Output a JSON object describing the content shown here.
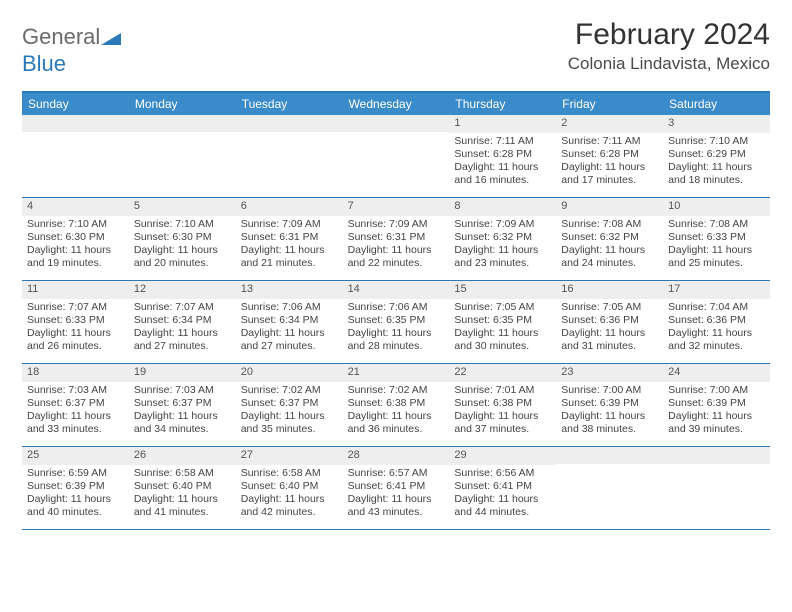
{
  "brand": {
    "part1": "General",
    "part2": "Blue"
  },
  "title": "February 2024",
  "location": "Colonia Lindavista, Mexico",
  "colors": {
    "header_bg": "#3a8bc9",
    "border": "#2a7ab9",
    "daynum_bg": "#eeeeee",
    "text": "#333333"
  },
  "weekdays": [
    "Sunday",
    "Monday",
    "Tuesday",
    "Wednesday",
    "Thursday",
    "Friday",
    "Saturday"
  ],
  "weeks": [
    [
      {
        "n": "",
        "sr": "",
        "ss": "",
        "dl": ""
      },
      {
        "n": "",
        "sr": "",
        "ss": "",
        "dl": ""
      },
      {
        "n": "",
        "sr": "",
        "ss": "",
        "dl": ""
      },
      {
        "n": "",
        "sr": "",
        "ss": "",
        "dl": ""
      },
      {
        "n": "1",
        "sr": "Sunrise: 7:11 AM",
        "ss": "Sunset: 6:28 PM",
        "dl": "Daylight: 11 hours and 16 minutes."
      },
      {
        "n": "2",
        "sr": "Sunrise: 7:11 AM",
        "ss": "Sunset: 6:28 PM",
        "dl": "Daylight: 11 hours and 17 minutes."
      },
      {
        "n": "3",
        "sr": "Sunrise: 7:10 AM",
        "ss": "Sunset: 6:29 PM",
        "dl": "Daylight: 11 hours and 18 minutes."
      }
    ],
    [
      {
        "n": "4",
        "sr": "Sunrise: 7:10 AM",
        "ss": "Sunset: 6:30 PM",
        "dl": "Daylight: 11 hours and 19 minutes."
      },
      {
        "n": "5",
        "sr": "Sunrise: 7:10 AM",
        "ss": "Sunset: 6:30 PM",
        "dl": "Daylight: 11 hours and 20 minutes."
      },
      {
        "n": "6",
        "sr": "Sunrise: 7:09 AM",
        "ss": "Sunset: 6:31 PM",
        "dl": "Daylight: 11 hours and 21 minutes."
      },
      {
        "n": "7",
        "sr": "Sunrise: 7:09 AM",
        "ss": "Sunset: 6:31 PM",
        "dl": "Daylight: 11 hours and 22 minutes."
      },
      {
        "n": "8",
        "sr": "Sunrise: 7:09 AM",
        "ss": "Sunset: 6:32 PM",
        "dl": "Daylight: 11 hours and 23 minutes."
      },
      {
        "n": "9",
        "sr": "Sunrise: 7:08 AM",
        "ss": "Sunset: 6:32 PM",
        "dl": "Daylight: 11 hours and 24 minutes."
      },
      {
        "n": "10",
        "sr": "Sunrise: 7:08 AM",
        "ss": "Sunset: 6:33 PM",
        "dl": "Daylight: 11 hours and 25 minutes."
      }
    ],
    [
      {
        "n": "11",
        "sr": "Sunrise: 7:07 AM",
        "ss": "Sunset: 6:33 PM",
        "dl": "Daylight: 11 hours and 26 minutes."
      },
      {
        "n": "12",
        "sr": "Sunrise: 7:07 AM",
        "ss": "Sunset: 6:34 PM",
        "dl": "Daylight: 11 hours and 27 minutes."
      },
      {
        "n": "13",
        "sr": "Sunrise: 7:06 AM",
        "ss": "Sunset: 6:34 PM",
        "dl": "Daylight: 11 hours and 27 minutes."
      },
      {
        "n": "14",
        "sr": "Sunrise: 7:06 AM",
        "ss": "Sunset: 6:35 PM",
        "dl": "Daylight: 11 hours and 28 minutes."
      },
      {
        "n": "15",
        "sr": "Sunrise: 7:05 AM",
        "ss": "Sunset: 6:35 PM",
        "dl": "Daylight: 11 hours and 30 minutes."
      },
      {
        "n": "16",
        "sr": "Sunrise: 7:05 AM",
        "ss": "Sunset: 6:36 PM",
        "dl": "Daylight: 11 hours and 31 minutes."
      },
      {
        "n": "17",
        "sr": "Sunrise: 7:04 AM",
        "ss": "Sunset: 6:36 PM",
        "dl": "Daylight: 11 hours and 32 minutes."
      }
    ],
    [
      {
        "n": "18",
        "sr": "Sunrise: 7:03 AM",
        "ss": "Sunset: 6:37 PM",
        "dl": "Daylight: 11 hours and 33 minutes."
      },
      {
        "n": "19",
        "sr": "Sunrise: 7:03 AM",
        "ss": "Sunset: 6:37 PM",
        "dl": "Daylight: 11 hours and 34 minutes."
      },
      {
        "n": "20",
        "sr": "Sunrise: 7:02 AM",
        "ss": "Sunset: 6:37 PM",
        "dl": "Daylight: 11 hours and 35 minutes."
      },
      {
        "n": "21",
        "sr": "Sunrise: 7:02 AM",
        "ss": "Sunset: 6:38 PM",
        "dl": "Daylight: 11 hours and 36 minutes."
      },
      {
        "n": "22",
        "sr": "Sunrise: 7:01 AM",
        "ss": "Sunset: 6:38 PM",
        "dl": "Daylight: 11 hours and 37 minutes."
      },
      {
        "n": "23",
        "sr": "Sunrise: 7:00 AM",
        "ss": "Sunset: 6:39 PM",
        "dl": "Daylight: 11 hours and 38 minutes."
      },
      {
        "n": "24",
        "sr": "Sunrise: 7:00 AM",
        "ss": "Sunset: 6:39 PM",
        "dl": "Daylight: 11 hours and 39 minutes."
      }
    ],
    [
      {
        "n": "25",
        "sr": "Sunrise: 6:59 AM",
        "ss": "Sunset: 6:39 PM",
        "dl": "Daylight: 11 hours and 40 minutes."
      },
      {
        "n": "26",
        "sr": "Sunrise: 6:58 AM",
        "ss": "Sunset: 6:40 PM",
        "dl": "Daylight: 11 hours and 41 minutes."
      },
      {
        "n": "27",
        "sr": "Sunrise: 6:58 AM",
        "ss": "Sunset: 6:40 PM",
        "dl": "Daylight: 11 hours and 42 minutes."
      },
      {
        "n": "28",
        "sr": "Sunrise: 6:57 AM",
        "ss": "Sunset: 6:41 PM",
        "dl": "Daylight: 11 hours and 43 minutes."
      },
      {
        "n": "29",
        "sr": "Sunrise: 6:56 AM",
        "ss": "Sunset: 6:41 PM",
        "dl": "Daylight: 11 hours and 44 minutes."
      },
      {
        "n": "",
        "sr": "",
        "ss": "",
        "dl": ""
      },
      {
        "n": "",
        "sr": "",
        "ss": "",
        "dl": ""
      }
    ]
  ]
}
